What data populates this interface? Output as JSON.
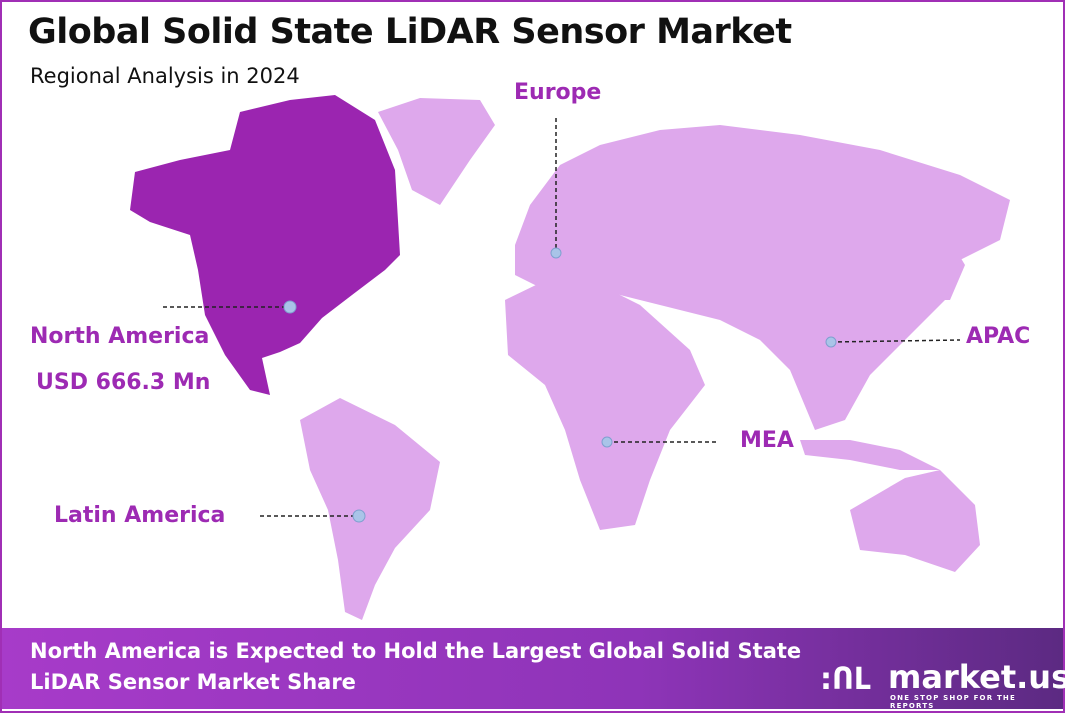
{
  "header": {
    "title": "Global Solid State LiDAR Sensor Market",
    "subtitle": "Regional Analysis in 2024"
  },
  "regions": [
    {
      "name": "North America",
      "value": "USD 666.3 Mn",
      "highlighted": true
    },
    {
      "name": "Europe"
    },
    {
      "name": "APAC"
    },
    {
      "name": "MEA"
    },
    {
      "name": "Latin America"
    }
  ],
  "colors": {
    "highlight": "#9b25b0",
    "other": "#dea8ec",
    "marker": "#a9c4e8",
    "label": "#9d2ab3"
  },
  "banner": {
    "text": "North America is Expected to Hold the Largest Global Solid State LiDAR Sensor Market Share"
  },
  "logo": {
    "name": "market.us",
    "tagline": "ONE STOP SHOP FOR THE REPORTS"
  }
}
